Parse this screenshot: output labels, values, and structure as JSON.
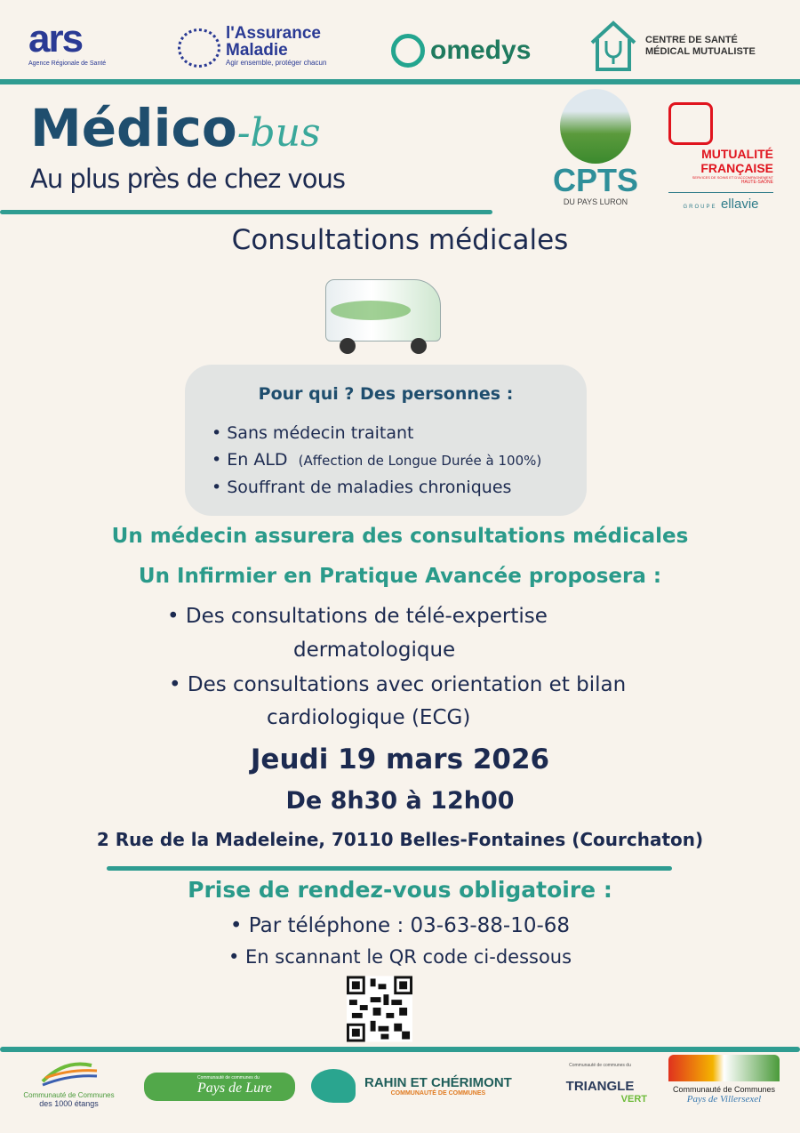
{
  "header_logos": {
    "ars": {
      "main": "ars",
      "sub": "Agence Régionale de Santé"
    },
    "assurance": {
      "line1": "l'Assurance",
      "line2": "Maladie",
      "tagline": "Agir ensemble, protéger chacun"
    },
    "omedys": "omedys",
    "centre": {
      "line1": "CENTRE DE SANTÉ",
      "line2": "MÉDICAL MUTUALISTE"
    },
    "cpts": {
      "main": "CPTS",
      "sub": "DU PAYS LURON"
    },
    "mutualite": {
      "line1": "MUTUALITÉ",
      "line2": "FRANÇAISE",
      "sub": "SERVICES DE SOINS ET D'ACCOMPAGNEMENT",
      "region": "HAUTE-SAÔNE",
      "groupe": "GROUPE",
      "ellavie": "ellavie"
    }
  },
  "title": {
    "main": "Médico",
    "script": "-bus",
    "subtitle": "Au plus près de chez vous"
  },
  "section_title": "Consultations médicales",
  "audience": {
    "heading": "Pour qui ? Des personnes :",
    "items": [
      {
        "text": "Sans médecin traitant",
        "note": ""
      },
      {
        "text": "En ALD",
        "note": "(Affection de Longue Durée à 100%)"
      },
      {
        "text": "Souffrant de maladies chroniques",
        "note": ""
      }
    ]
  },
  "services": {
    "doctor": "Un médecin assurera des consultations médicales",
    "nurse": "Un Infirmier en Pratique Avancée proposera :",
    "items": [
      {
        "l1": "• Des consultations  de télé-expertise",
        "l2": "dermatologique"
      },
      {
        "l1": "•  Des consultations avec orientation et bilan",
        "l2": "cardiologique (ECG)"
      }
    ]
  },
  "event": {
    "date": "Jeudi 19 mars 2026",
    "time": "De 8h30 à 12h00",
    "address": "2 Rue de la Madeleine, 70110 Belles-Fontaines (Courchaton)"
  },
  "booking": {
    "title": "Prise de rendez-vous obligatoire :",
    "phone": "• Par téléphone : 03-63-88-10-68",
    "qr": "• En scannant le QR code ci-dessous"
  },
  "footer_logos": {
    "etangs": {
      "l1": "Communauté de Communes",
      "l2": "des 1000 étangs"
    },
    "lure": {
      "small": "Communauté de communes du",
      "main": "Pays de Lure"
    },
    "rahin": {
      "main": "RAHIN ET CHÉRIMONT",
      "sub": "COMMUNAUTÉ DE COMMUNES"
    },
    "triangle": {
      "small": "Communauté de communes du",
      "main": "TRIANGLE",
      "sub": "VERT"
    },
    "villersexel": {
      "l1": "Communauté de Communes",
      "l2": "Pays de Villersexel"
    }
  },
  "colors": {
    "teal": "#2f9c91",
    "navy": "#1c2a50",
    "title_blue": "#1f4e6e",
    "background": "#f8f3ec"
  }
}
